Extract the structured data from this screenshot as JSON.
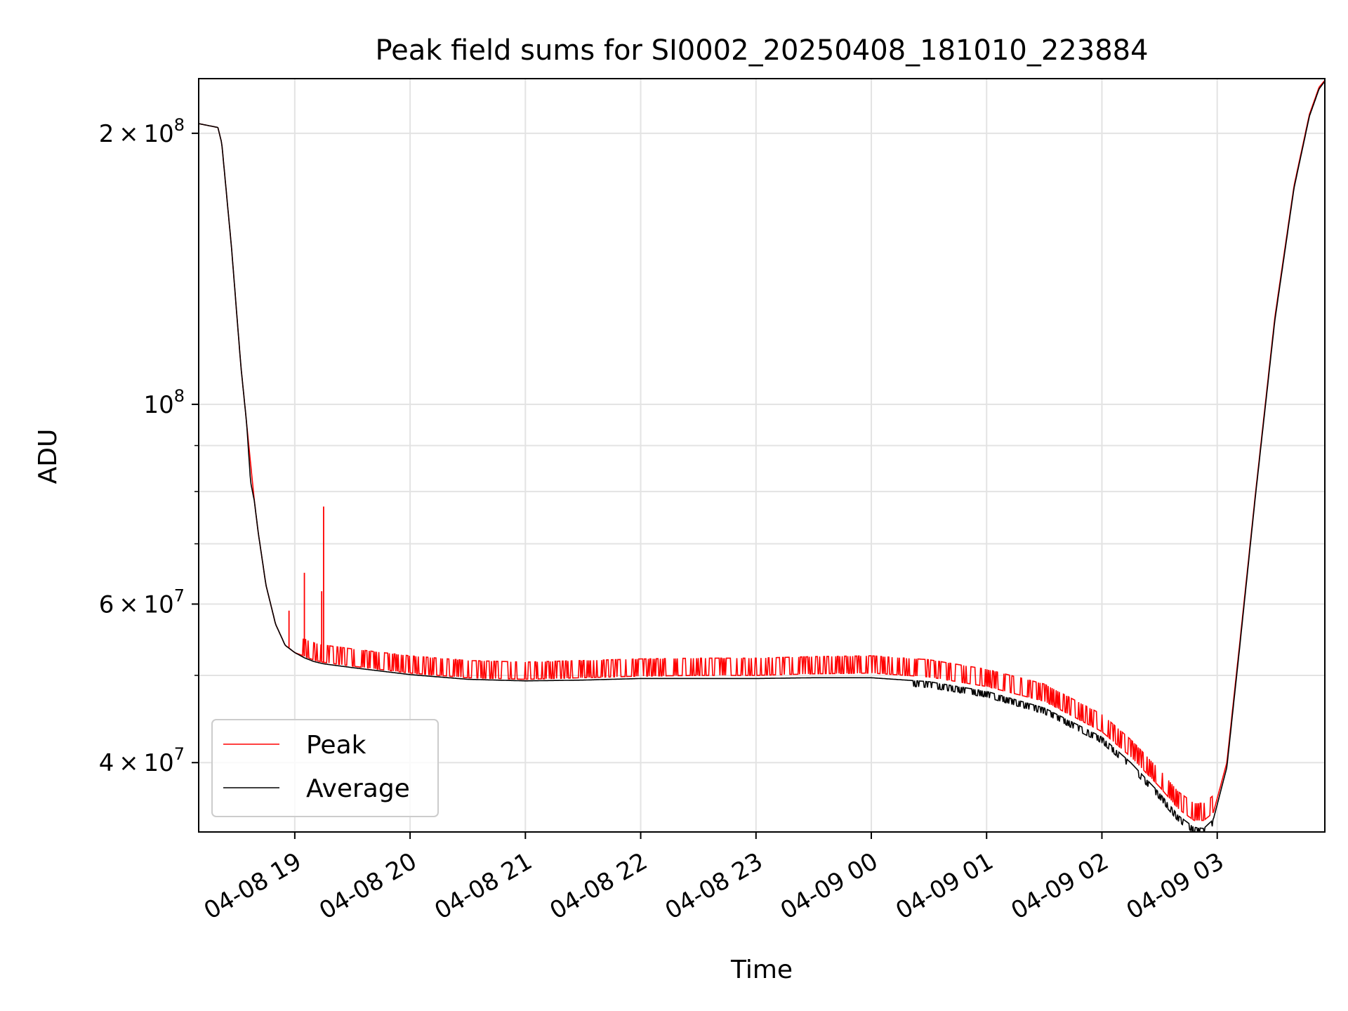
{
  "chart_data": {
    "type": "line",
    "title": "Peak field sums for SI0002_20250408_181010_223884",
    "xlabel": "Time",
    "ylabel": "ADU",
    "y_scale": "log",
    "grid": true,
    "legend_placement": "lower-left",
    "xlim": [
      "2025-04-08 18:10",
      "2025-04-09 03:56"
    ],
    "ylim": [
      33500000,
      230000000
    ],
    "x_ticks": [
      "04-08 19",
      "04-08 20",
      "04-08 21",
      "04-08 22",
      "04-08 23",
      "04-09 00",
      "04-09 01",
      "04-09 02",
      "04-09 03"
    ],
    "x_tick_values": [
      "2025-04-08 19:00",
      "2025-04-08 20:00",
      "2025-04-08 21:00",
      "2025-04-08 22:00",
      "2025-04-08 23:00",
      "2025-04-09 00:00",
      "2025-04-09 01:00",
      "2025-04-09 02:00",
      "2025-04-09 03:00"
    ],
    "y_ticks_major": [
      {
        "value": 40000000,
        "mantissa": "4",
        "label": "4 × 10^7"
      },
      {
        "value": 60000000,
        "mantissa": "6",
        "label": "6 × 10^7"
      },
      {
        "value": 100000000,
        "mantissa": "",
        "label": "10^8"
      },
      {
        "value": 200000000,
        "mantissa": "2",
        "label": "2 × 10^8"
      }
    ],
    "y_ticks_minor": [
      50000000,
      70000000,
      80000000,
      90000000
    ],
    "series": [
      {
        "name": "Peak",
        "color": "#ff0000",
        "x": [
          "2025-04-08 18:10",
          "2025-04-08 18:20",
          "2025-04-08 18:22",
          "2025-04-08 18:27",
          "2025-04-08 18:32",
          "2025-04-08 18:35",
          "2025-04-08 18:37",
          "2025-04-08 18:39",
          "2025-04-08 18:41",
          "2025-04-08 18:45",
          "2025-04-08 18:50",
          "2025-04-08 18:55",
          "2025-04-08 19:00",
          "2025-04-08 19:05",
          "2025-04-08 19:10",
          "2025-04-08 19:15",
          "2025-04-08 19:30",
          "2025-04-08 20:00",
          "2025-04-08 20:30",
          "2025-04-08 21:00",
          "2025-04-08 21:30",
          "2025-04-08 22:00",
          "2025-04-08 22:30",
          "2025-04-08 23:00",
          "2025-04-08 23:30",
          "2025-04-09 00:00",
          "2025-04-09 00:30",
          "2025-04-09 01:00",
          "2025-04-09 01:30",
          "2025-04-09 02:00",
          "2025-04-09 02:15",
          "2025-04-09 02:30",
          "2025-04-09 02:40",
          "2025-04-09 02:48",
          "2025-04-09 02:53",
          "2025-04-09 02:58",
          "2025-04-09 03:05",
          "2025-04-09 03:12",
          "2025-04-09 03:20",
          "2025-04-09 03:30",
          "2025-04-09 03:40",
          "2025-04-09 03:48",
          "2025-04-09 03:53",
          "2025-04-09 03:56"
        ],
        "values": [
          205000000,
          203000000,
          195000000,
          150000000,
          110000000,
          95000000,
          86000000,
          78000000,
          72000000,
          63000000,
          57000000,
          54000000,
          53000000,
          52500000,
          52000000,
          51700000,
          51200000,
          50300000,
          49700000,
          49500000,
          49700000,
          49900000,
          50000000,
          50000000,
          50200000,
          50300000,
          49800000,
          48600000,
          46800000,
          43300000,
          40600000,
          37600000,
          35500000,
          34500000,
          34500000,
          35200000,
          40000000,
          55000000,
          80000000,
          125000000,
          175000000,
          210000000,
          225000000,
          229000000
        ]
      },
      {
        "name": "Average",
        "color": "#000000",
        "x": [
          "2025-04-08 18:10",
          "2025-04-08 18:20",
          "2025-04-08 18:22",
          "2025-04-08 18:27",
          "2025-04-08 18:32",
          "2025-04-08 18:35",
          "2025-04-08 18:37",
          "2025-04-08 18:39",
          "2025-04-08 18:41",
          "2025-04-08 18:45",
          "2025-04-08 18:50",
          "2025-04-08 18:55",
          "2025-04-08 19:00",
          "2025-04-08 19:05",
          "2025-04-08 19:10",
          "2025-04-08 19:15",
          "2025-04-08 19:30",
          "2025-04-08 20:00",
          "2025-04-08 20:30",
          "2025-04-08 21:00",
          "2025-04-08 21:30",
          "2025-04-08 22:00",
          "2025-04-08 22:30",
          "2025-04-08 23:00",
          "2025-04-08 23:30",
          "2025-04-09 00:00",
          "2025-04-09 00:30",
          "2025-04-09 01:00",
          "2025-04-09 01:30",
          "2025-04-09 02:00",
          "2025-04-09 02:15",
          "2025-04-09 02:30",
          "2025-04-09 02:40",
          "2025-04-09 02:48",
          "2025-04-09 02:53",
          "2025-04-09 02:58",
          "2025-04-09 03:05",
          "2025-04-09 03:12",
          "2025-04-09 03:20",
          "2025-04-09 03:30",
          "2025-04-09 03:40",
          "2025-04-09 03:48",
          "2025-04-09 03:53",
          "2025-04-09 03:56"
        ],
        "values": [
          205000000,
          203000000,
          195000000,
          150000000,
          110000000,
          95000000,
          82000000,
          78000000,
          72000000,
          63000000,
          57000000,
          54000000,
          53000000,
          52300000,
          51800000,
          51500000,
          51000000,
          50100000,
          49500000,
          49300000,
          49400000,
          49600000,
          49600000,
          49600000,
          49700000,
          49700000,
          49200000,
          48000000,
          46000000,
          42700000,
          40000000,
          37000000,
          34900000,
          33900000,
          33800000,
          34600000,
          39500000,
          54500000,
          79500000,
          124000000,
          174000000,
          209000000,
          224000000,
          228500000
        ]
      }
    ],
    "spikes": [
      {
        "series": "Peak",
        "x": "2025-04-08 19:05",
        "value": 65000000
      },
      {
        "series": "Peak",
        "x": "2025-04-08 19:15",
        "value": 77000000
      },
      {
        "series": "Peak",
        "x": "2025-04-08 19:14",
        "value": 62000000
      },
      {
        "series": "Peak",
        "x": "2025-04-08 18:57",
        "value": 59000000
      }
    ],
    "peak_jitter_ratio": 1.045
  }
}
